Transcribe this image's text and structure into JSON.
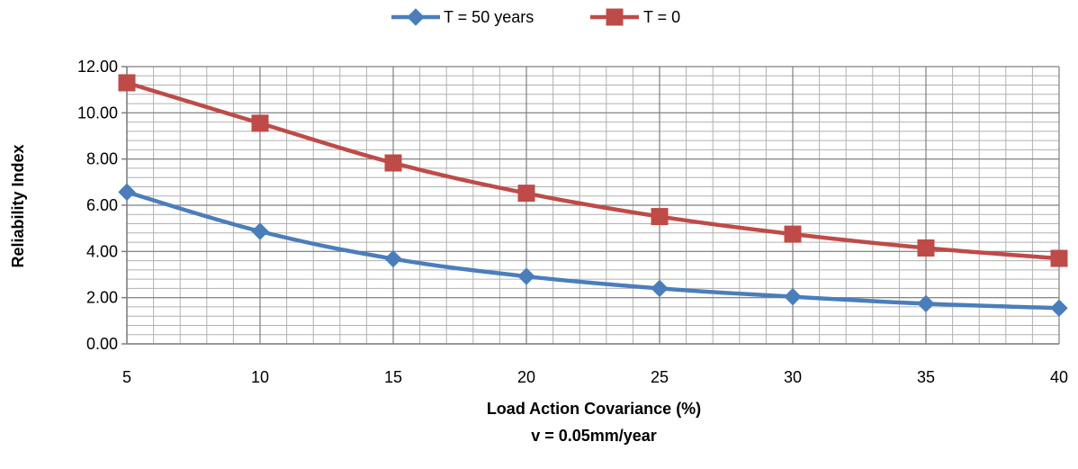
{
  "chart_data": {
    "type": "line",
    "x": [
      5,
      10,
      15,
      20,
      25,
      30,
      35,
      40
    ],
    "series": [
      {
        "name": "T = 50 years",
        "values": [
          6.57,
          4.87,
          3.68,
          2.92,
          2.4,
          2.04,
          1.74,
          1.55
        ],
        "color": "#4a7ebb",
        "marker": "diamond"
      },
      {
        "name": "T = 0",
        "values": [
          11.3,
          9.55,
          7.83,
          6.52,
          5.51,
          4.75,
          4.15,
          3.7
        ],
        "color": "#be4b48",
        "marker": "square"
      }
    ],
    "xticks": [
      5,
      10,
      15,
      20,
      25,
      30,
      35,
      40
    ],
    "yticks": [
      0,
      2,
      4,
      6,
      8,
      10,
      12
    ],
    "ytick_labels": [
      "0.00",
      "2.00",
      "4.00",
      "6.00",
      "8.00",
      "10.00",
      "12.00"
    ],
    "xlim": [
      5,
      40
    ],
    "ylim": [
      0,
      12
    ],
    "ylabel": "Reliability Index",
    "xlabel": "Load Action Covariance (%)",
    "xlabel2": "v = 0.05mm/year",
    "legend_position": "top-center",
    "grid": true
  }
}
